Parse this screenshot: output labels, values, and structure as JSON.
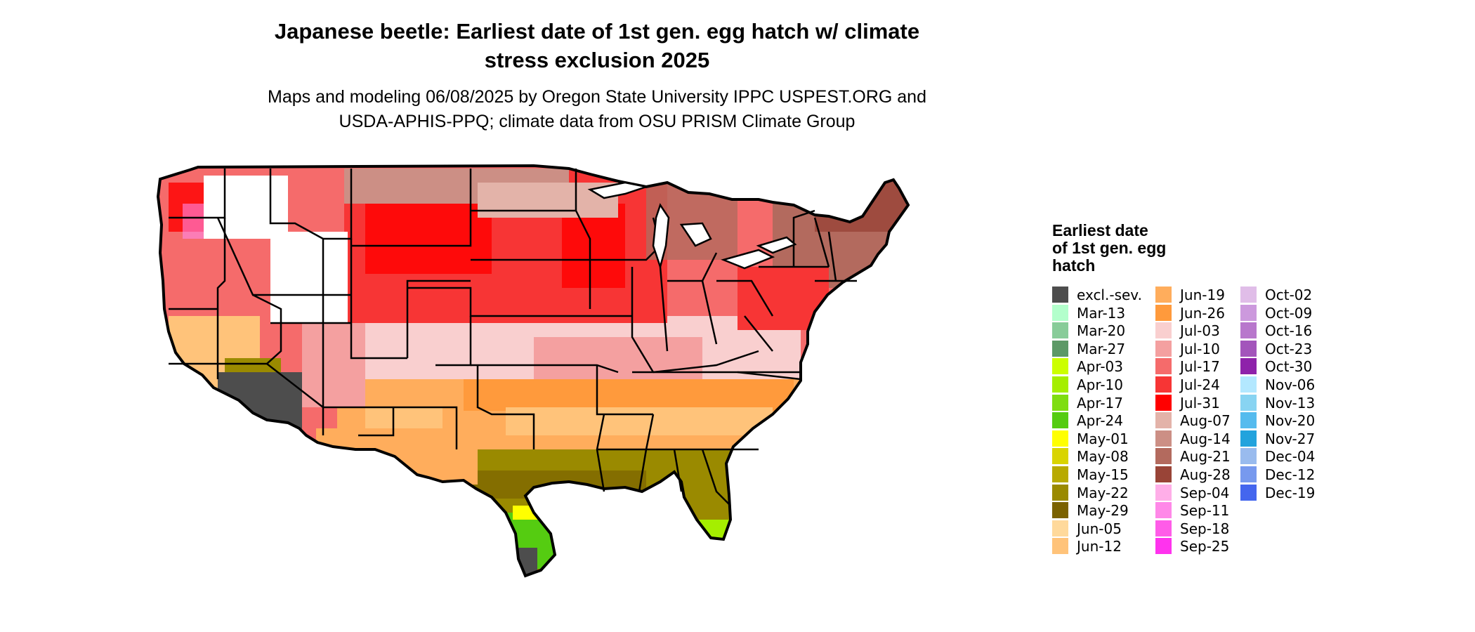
{
  "title_line1": "Japanese beetle: Earliest date of 1st gen. egg hatch w/ climate",
  "title_line2": "stress exclusion 2025",
  "subtitle_line1": "Maps and modeling 06/08/2025 by Oregon State University IPPC USPEST.ORG and",
  "subtitle_line2": "USDA-APHIS-PPQ; climate data from OSU PRISM Climate Group",
  "legend": {
    "title_lines": [
      "Earliest date",
      "of 1st gen. egg",
      "hatch"
    ],
    "columns": [
      [
        {
          "label": "excl.-sev.",
          "color": "#4d4d4d"
        },
        {
          "label": "Mar-13",
          "color": "#b3ffcc"
        },
        {
          "label": "Mar-20",
          "color": "#88cc99"
        },
        {
          "label": "Mar-27",
          "color": "#5c9966"
        },
        {
          "label": "Apr-03",
          "color": "#ccff00"
        },
        {
          "label": "Apr-10",
          "color": "#a5ee00"
        },
        {
          "label": "Apr-17",
          "color": "#7fdd11"
        },
        {
          "label": "Apr-24",
          "color": "#55cc11"
        },
        {
          "label": "May-01",
          "color": "#ffff00"
        },
        {
          "label": "May-08",
          "color": "#d9d400"
        },
        {
          "label": "May-15",
          "color": "#b8aa00"
        },
        {
          "label": "May-22",
          "color": "#9a8a00"
        },
        {
          "label": "May-29",
          "color": "#7b6200"
        },
        {
          "label": "Jun-05",
          "color": "#ffd99b"
        },
        {
          "label": "Jun-12",
          "color": "#ffc37a"
        }
      ],
      [
        {
          "label": "Jun-19",
          "color": "#ffad5c"
        },
        {
          "label": "Jun-26",
          "color": "#ff9a3c"
        },
        {
          "label": "Jul-03",
          "color": "#f9cfcf"
        },
        {
          "label": "Jul-10",
          "color": "#f4a0a0"
        },
        {
          "label": "Jul-17",
          "color": "#f56b6b"
        },
        {
          "label": "Jul-24",
          "color": "#f73535"
        },
        {
          "label": "Jul-31",
          "color": "#ff0000"
        },
        {
          "label": "Aug-07",
          "color": "#e3b3a9"
        },
        {
          "label": "Aug-14",
          "color": "#cc8f85"
        },
        {
          "label": "Aug-21",
          "color": "#b36a5e"
        },
        {
          "label": "Aug-28",
          "color": "#994437"
        },
        {
          "label": "Sep-04",
          "color": "#ffaee8"
        },
        {
          "label": "Sep-11",
          "color": "#ff88e8"
        },
        {
          "label": "Sep-18",
          "color": "#ff5ce8"
        },
        {
          "label": "Sep-25",
          "color": "#ff33ee"
        }
      ],
      [
        {
          "label": "Oct-02",
          "color": "#e0bde8"
        },
        {
          "label": "Oct-09",
          "color": "#cc99dd"
        },
        {
          "label": "Oct-16",
          "color": "#b877cc"
        },
        {
          "label": "Oct-23",
          "color": "#a355bb"
        },
        {
          "label": "Oct-30",
          "color": "#8e22aa"
        },
        {
          "label": "Nov-06",
          "color": "#b3e8ff"
        },
        {
          "label": "Nov-13",
          "color": "#88d4f2"
        },
        {
          "label": "Nov-20",
          "color": "#55bbee"
        },
        {
          "label": "Nov-27",
          "color": "#22a3dd"
        },
        {
          "label": "Dec-04",
          "color": "#99bbee"
        },
        {
          "label": "Dec-12",
          "color": "#7799ee"
        },
        {
          "label": "Dec-19",
          "color": "#4466ee"
        }
      ]
    ]
  },
  "map": {
    "region": "Contiguous United States",
    "excluded_color": "#4d4d4d",
    "no_data_color": "#ffffff",
    "border_color": "#000000"
  }
}
